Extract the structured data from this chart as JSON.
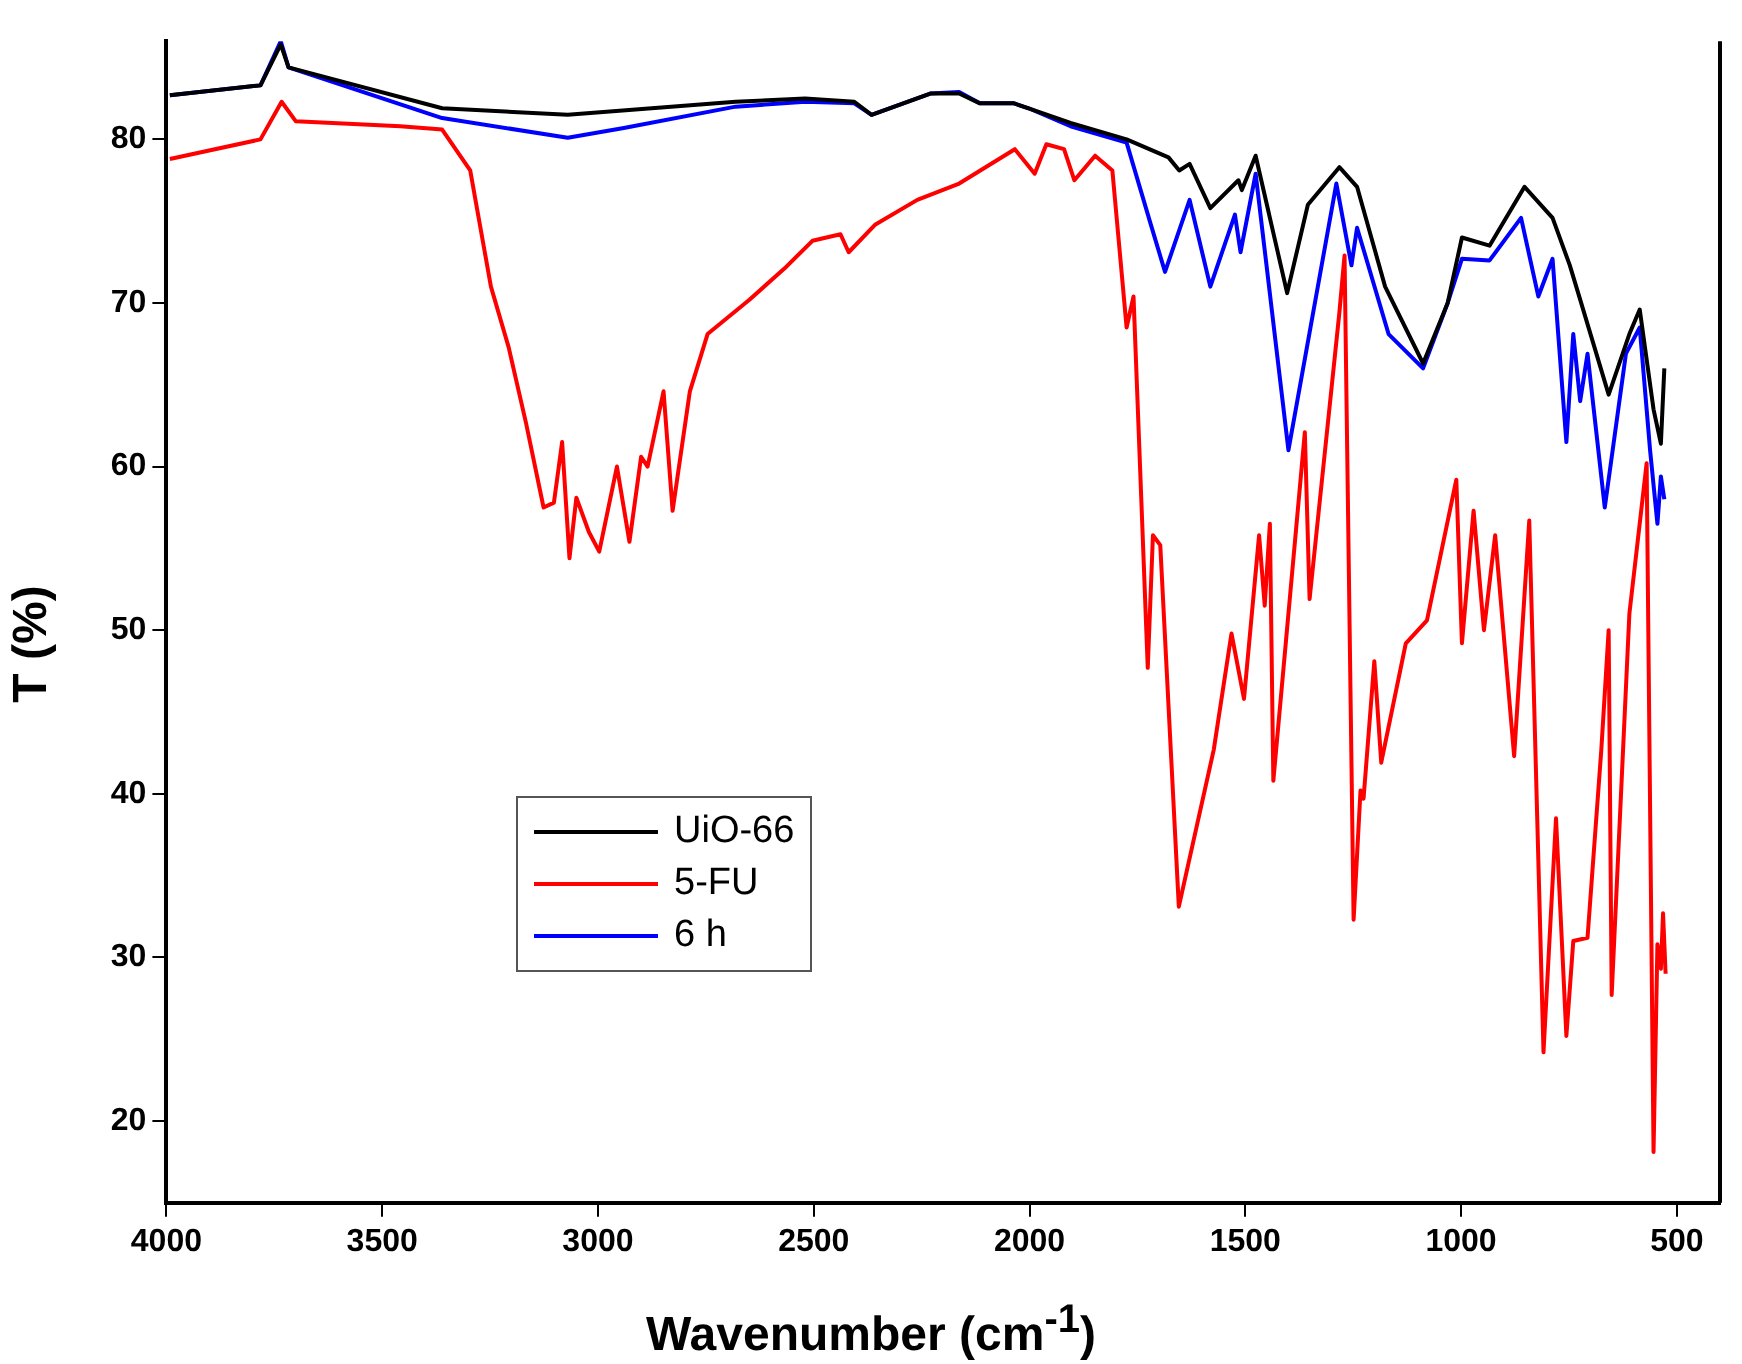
{
  "chart_data": {
    "type": "line",
    "xlabel": "Wavenumber (cm$^{-1}$)",
    "ylabel": "T (%)",
    "xlim": [
      4000,
      400
    ],
    "ylim": [
      15,
      86
    ],
    "xticks": [
      4000,
      3500,
      3000,
      2500,
      2000,
      1500,
      1000,
      500
    ],
    "yticks": [
      20,
      30,
      40,
      50,
      60,
      70,
      80
    ],
    "grid": false,
    "legend": "bottom left",
    "marker": "none",
    "line_style": "solid",
    "series": [
      {
        "name": "UiO-66",
        "color": "#000000",
        "x": [
          3992,
          3782,
          3735,
          3717,
          3361,
          3070,
          2681,
          2520,
          2406,
          2366,
          2230,
          2163,
          2115,
          2036,
          2002,
          1905,
          1775,
          1678,
          1653,
          1629,
          1581,
          1516,
          1508,
          1476,
          1403,
          1355,
          1282,
          1241,
          1176,
          1088,
          1031,
          998,
          934,
          853,
          788,
          748,
          724,
          658,
          610,
          586,
          554,
          537,
          529
        ],
        "values": [
          82.7,
          83.3,
          85.8,
          84.4,
          81.9,
          81.5,
          82.3,
          82.5,
          82.3,
          81.5,
          82.8,
          82.8,
          82.2,
          82.2,
          81.9,
          81.0,
          80.0,
          78.9,
          78.1,
          78.5,
          75.8,
          77.5,
          76.9,
          79.0,
          70.6,
          76.0,
          78.3,
          77.1,
          71.0,
          66.3,
          70.0,
          74.0,
          73.5,
          77.1,
          75.2,
          72.3,
          70.2,
          64.4,
          68.1,
          69.6,
          63.5,
          61.4,
          66.0
        ]
      },
      {
        "name": "5-FU",
        "color": "#ff0000",
        "x": [
          3992,
          3782,
          3733,
          3700,
          3458,
          3361,
          3296,
          3248,
          3207,
          3167,
          3126,
          3102,
          3083,
          3066,
          3050,
          3021,
          2997,
          2956,
          2927,
          2900,
          2885,
          2848,
          2827,
          2787,
          2746,
          2649,
          2568,
          2503,
          2438,
          2419,
          2357,
          2260,
          2163,
          2034,
          1988,
          1961,
          1920,
          1896,
          1848,
          1808,
          1775,
          1759,
          1726,
          1714,
          1697,
          1654,
          1573,
          1532,
          1503,
          1468,
          1455,
          1443,
          1435,
          1362,
          1351,
          1282,
          1270,
          1249,
          1233,
          1226,
          1201,
          1185,
          1128,
          1079,
          1011,
          998,
          971,
          947,
          921,
          877,
          842,
          809,
          780,
          756,
          740,
          707,
          675,
          658,
          651,
          610,
          570,
          554,
          545,
          537,
          532,
          526
        ],
        "values": [
          78.8,
          80.0,
          82.3,
          81.1,
          80.8,
          80.6,
          78.1,
          71.0,
          67.3,
          62.7,
          57.5,
          57.8,
          61.5,
          54.4,
          58.1,
          56.0,
          54.8,
          60.0,
          55.4,
          60.6,
          60.0,
          64.6,
          57.3,
          64.6,
          68.1,
          70.2,
          72.1,
          73.8,
          74.2,
          73.1,
          74.8,
          76.3,
          77.3,
          79.4,
          77.9,
          79.7,
          79.4,
          77.5,
          79.0,
          78.1,
          68.5,
          70.4,
          47.7,
          55.8,
          55.2,
          33.1,
          42.7,
          49.8,
          45.8,
          55.8,
          51.5,
          56.5,
          40.8,
          62.1,
          51.9,
          69.4,
          72.9,
          32.3,
          40.2,
          39.7,
          48.1,
          41.9,
          49.2,
          50.6,
          59.2,
          49.2,
          57.3,
          50.0,
          55.8,
          42.3,
          56.7,
          24.2,
          38.5,
          25.2,
          31.0,
          31.2,
          42.7,
          50.0,
          27.7,
          51.0,
          60.2,
          18.1,
          30.8,
          29.3,
          32.7,
          29.0
        ]
      },
      {
        "name": "6 h",
        "color": "#0000ff",
        "x": [
          3992,
          3782,
          3735,
          3717,
          3361,
          3070,
          2940,
          2681,
          2520,
          2406,
          2366,
          2230,
          2163,
          2115,
          2036,
          2002,
          1905,
          1775,
          1719,
          1686,
          1629,
          1581,
          1524,
          1511,
          1476,
          1400,
          1289,
          1254,
          1241,
          1168,
          1088,
          1031,
          998,
          934,
          861,
          821,
          788,
          756,
          740,
          724,
          707,
          667,
          618,
          586,
          562,
          545,
          537,
          529
        ],
        "values": [
          82.7,
          83.3,
          86.0,
          84.4,
          81.3,
          80.1,
          80.7,
          82.0,
          82.3,
          82.2,
          81.5,
          82.8,
          82.9,
          82.2,
          82.2,
          81.9,
          80.8,
          79.8,
          74.8,
          71.9,
          76.3,
          71.0,
          75.4,
          73.1,
          77.9,
          61.0,
          77.3,
          72.3,
          74.6,
          68.1,
          66.0,
          70.0,
          72.7,
          72.6,
          75.2,
          70.4,
          72.7,
          61.5,
          68.1,
          64.0,
          66.9,
          57.5,
          66.9,
          68.5,
          61.0,
          56.5,
          59.4,
          58.0
        ]
      }
    ]
  }
}
